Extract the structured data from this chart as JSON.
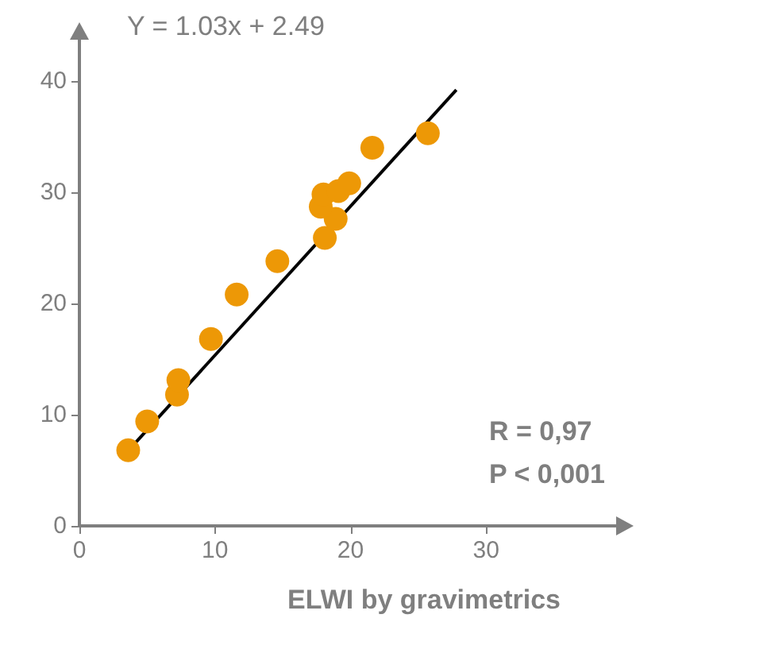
{
  "chart_data": {
    "type": "scatter",
    "xlabel": "ELWI by gravimetrics",
    "xlim": [
      0,
      39
    ],
    "ylim": [
      0,
      43
    ],
    "xticks": [
      0,
      10,
      20,
      30
    ],
    "yticks": [
      0,
      10,
      20,
      30,
      40
    ],
    "grid": false,
    "marker": "circle",
    "series": [
      {
        "type": "scatter",
        "color": "#ed9806",
        "x": [
          3.6,
          5.0,
          7.2,
          7.3,
          9.7,
          11.6,
          14.6,
          18.1,
          18.9,
          17.8,
          18.0,
          19.1,
          19.9,
          21.6,
          25.7
        ],
        "values": [
          6.8,
          9.4,
          11.8,
          13.1,
          16.8,
          20.8,
          23.8,
          25.9,
          27.6,
          28.7,
          29.8,
          30.1,
          30.8,
          34.0,
          35.3
        ]
      },
      {
        "type": "line",
        "color": "#000000",
        "marker": "none",
        "x": [
          4.0,
          27.8
        ],
        "values": [
          7.3,
          39.2
        ]
      }
    ],
    "annotations": [
      "Y = 1.03x + 2.49",
      "R = 0,97",
      "P < 0,001"
    ]
  }
}
